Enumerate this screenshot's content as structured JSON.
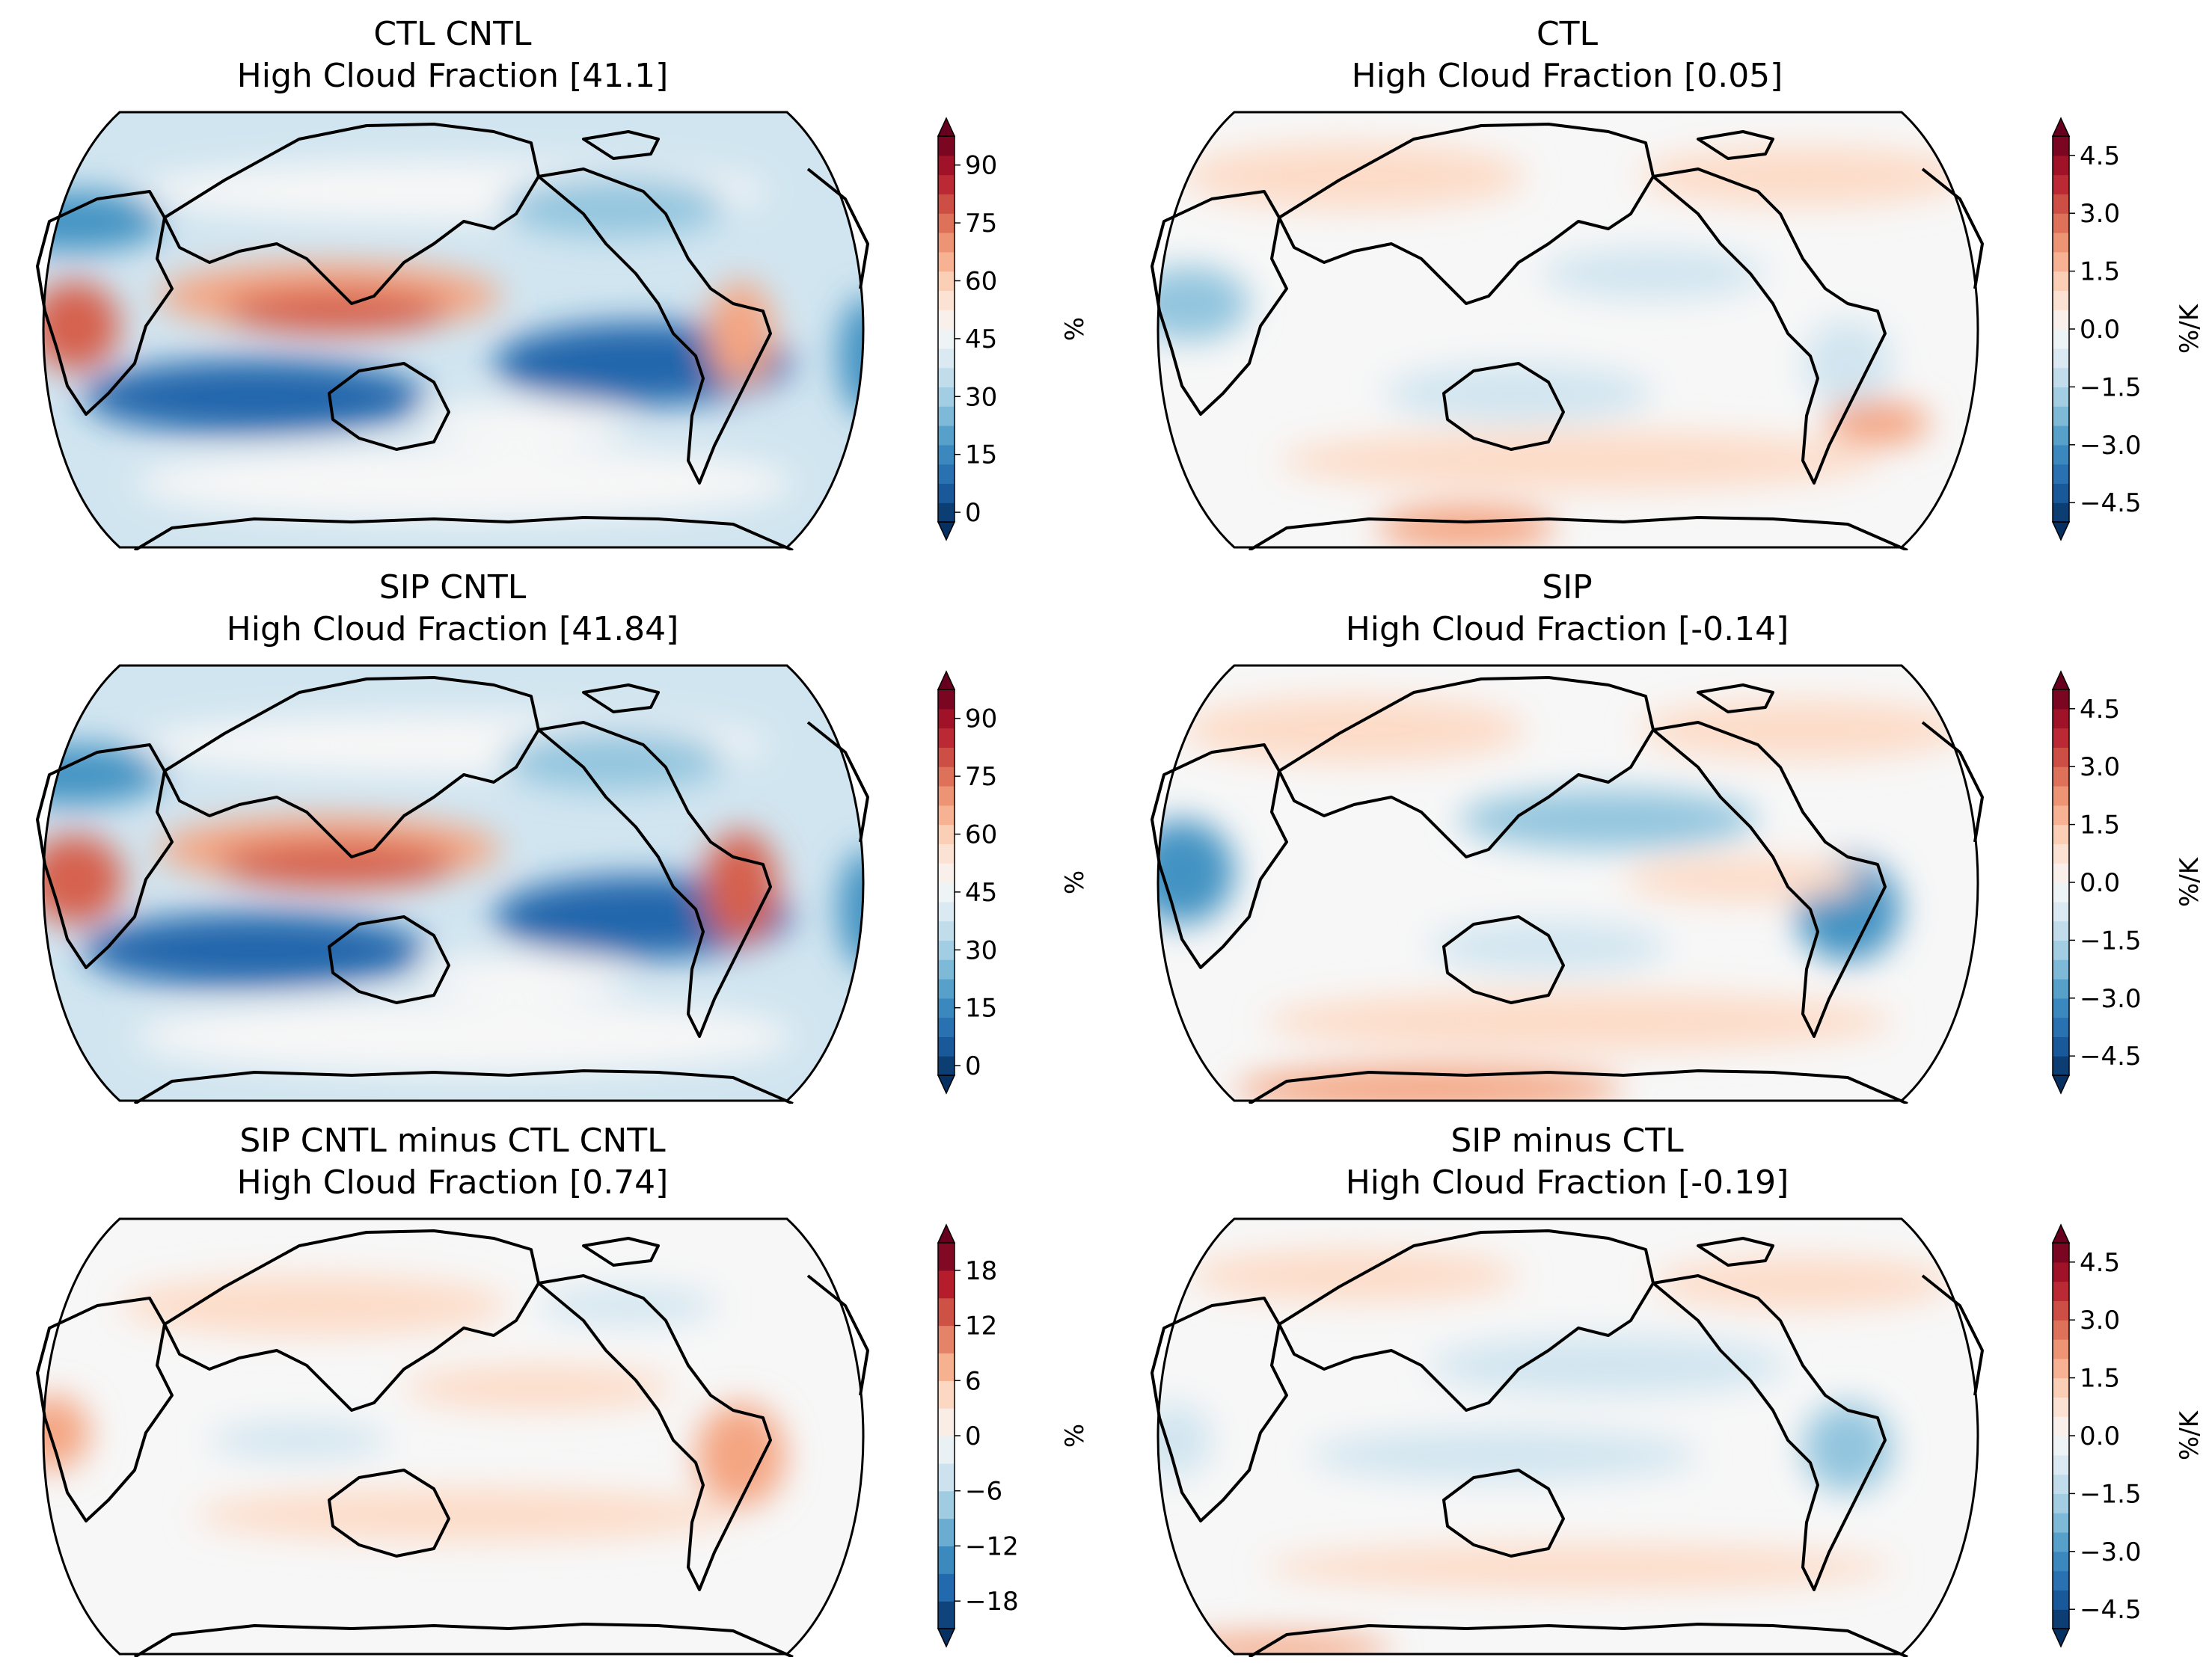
{
  "figure": {
    "panels": [
      {
        "id": "ctl-cntl",
        "title_line1": "CTL CNTL",
        "title_line2": "High Cloud Fraction [41.1]",
        "colorbar": {
          "unit": "%",
          "ticks": [
            "0",
            "15",
            "30",
            "45",
            "60",
            "75",
            "90"
          ],
          "min": -2.5,
          "max": 97.5,
          "levels": 20
        }
      },
      {
        "id": "ctl",
        "title_line1": "CTL",
        "title_line2": "High Cloud Fraction [0.05]",
        "colorbar": {
          "unit": "%/K",
          "ticks": [
            "−4.5",
            "−3.0",
            "−1.5",
            "0.0",
            "1.5",
            "3.0",
            "4.5"
          ],
          "min": -5.0,
          "max": 5.0,
          "levels": 20
        }
      },
      {
        "id": "sip-cntl",
        "title_line1": "SIP CNTL",
        "title_line2": "High Cloud Fraction [41.84]",
        "colorbar": {
          "unit": "%",
          "ticks": [
            "0",
            "15",
            "30",
            "45",
            "60",
            "75",
            "90"
          ],
          "min": -2.5,
          "max": 97.5,
          "levels": 20
        }
      },
      {
        "id": "sip",
        "title_line1": "SIP",
        "title_line2": "High Cloud Fraction [-0.14]",
        "colorbar": {
          "unit": "%/K",
          "ticks": [
            "−4.5",
            "−3.0",
            "−1.5",
            "0.0",
            "1.5",
            "3.0",
            "4.5"
          ],
          "min": -5.0,
          "max": 5.0,
          "levels": 20
        }
      },
      {
        "id": "sip-minus-ctl-cntl",
        "title_line1": "SIP CNTL minus CTL CNTL",
        "title_line2": "High Cloud Fraction [0.74]",
        "colorbar": {
          "unit": "%",
          "ticks": [
            "−18",
            "−12",
            "−6",
            "0",
            "6",
            "12",
            "18"
          ],
          "min": -21.0,
          "max": 21.0,
          "levels": 14
        }
      },
      {
        "id": "sip-minus-ctl",
        "title_line1": "SIP minus CTL",
        "title_line2": "High Cloud Fraction [-0.19]",
        "colorbar": {
          "unit": "%/K",
          "ticks": [
            "−4.5",
            "−3.0",
            "−1.5",
            "0.0",
            "1.5",
            "3.0",
            "4.5"
          ],
          "min": -5.0,
          "max": 5.0,
          "levels": 20
        }
      }
    ],
    "colormap": {
      "name": "RdBu_r",
      "low": "#053061",
      "mid": "#f7f7f7",
      "high": "#67001f"
    }
  }
}
